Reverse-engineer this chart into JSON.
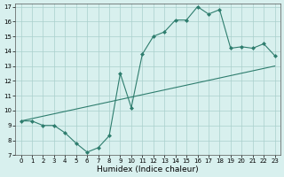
{
  "title": "",
  "xlabel": "Humidex (Indice chaleur)",
  "line1_x": [
    0,
    1,
    2,
    3,
    4,
    5,
    6,
    7,
    8,
    9,
    10,
    11,
    12,
    13,
    14,
    15,
    16,
    17,
    18,
    19,
    20,
    21,
    22,
    23
  ],
  "line1_y": [
    9.3,
    9.3,
    9.0,
    9.0,
    8.5,
    7.8,
    7.2,
    7.5,
    8.3,
    12.5,
    10.2,
    13.8,
    15.0,
    15.3,
    16.1,
    16.1,
    17.0,
    16.5,
    16.8,
    14.2,
    14.3,
    14.2,
    14.5,
    13.7
  ],
  "line2_x": [
    0,
    23
  ],
  "line2_y": [
    9.3,
    13.0
  ],
  "color": "#2e7d6e",
  "bg_color": "#d8f0ee",
  "grid_color": "#aacfcc",
  "xlim": [
    -0.5,
    23.5
  ],
  "ylim": [
    7,
    17.2
  ],
  "xticks": [
    0,
    1,
    2,
    3,
    4,
    5,
    6,
    7,
    8,
    9,
    10,
    11,
    12,
    13,
    14,
    15,
    16,
    17,
    18,
    19,
    20,
    21,
    22,
    23
  ],
  "yticks": [
    7,
    8,
    9,
    10,
    11,
    12,
    13,
    14,
    15,
    16,
    17
  ],
  "tick_fontsize": 5.0,
  "xlabel_fontsize": 6.5,
  "linewidth": 0.8,
  "markersize": 2.5
}
